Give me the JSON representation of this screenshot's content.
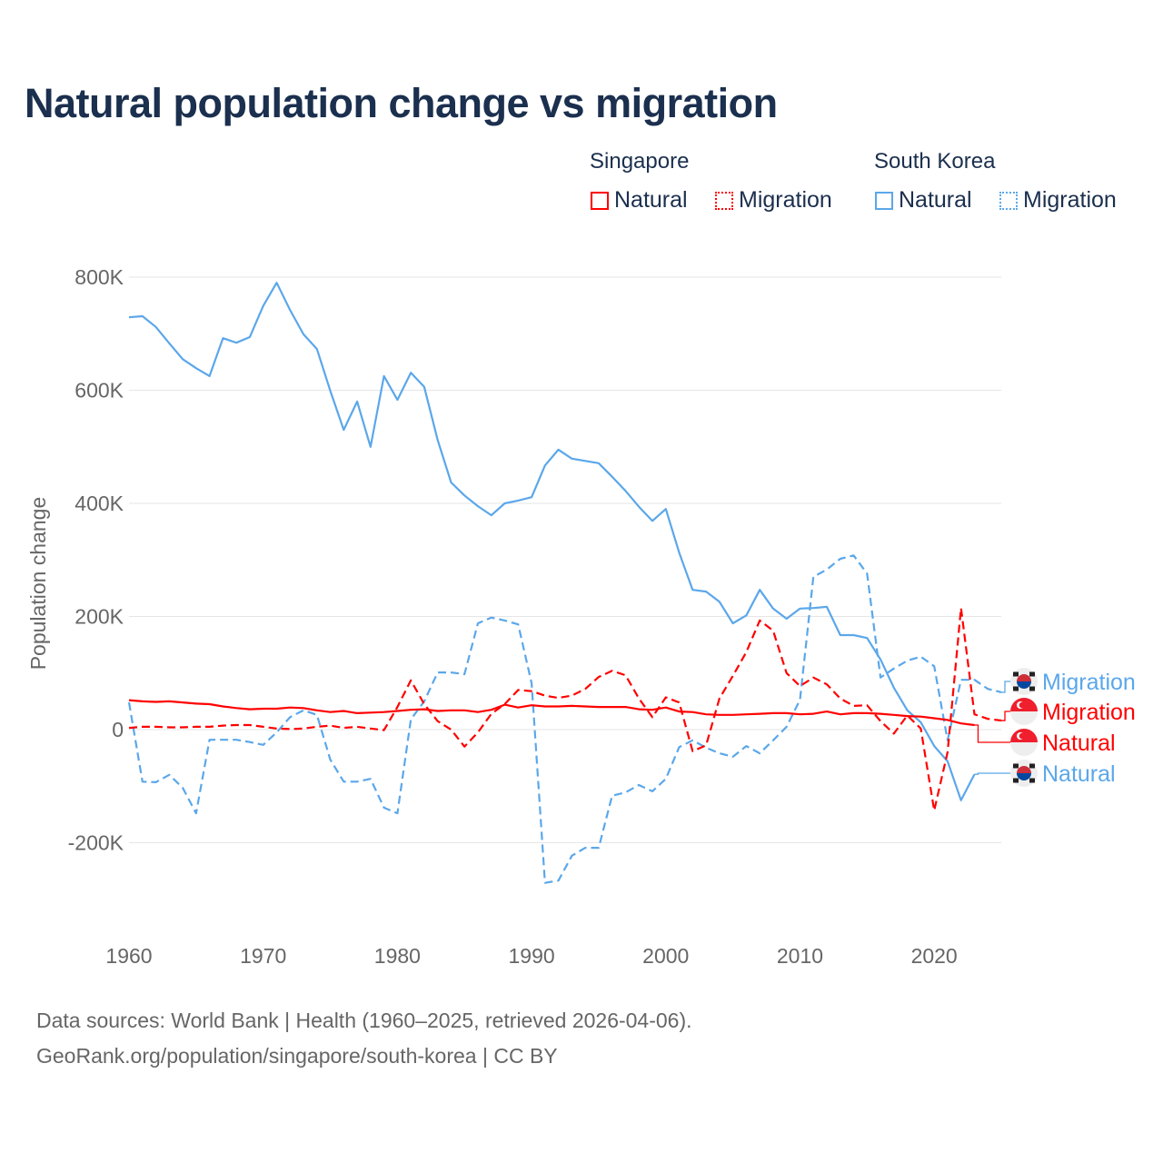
{
  "title": "Natural population change vs migration",
  "legend": {
    "groups": [
      {
        "name": "Singapore",
        "items": [
          {
            "label": "Natural",
            "style": "solid"
          },
          {
            "label": "Migration",
            "style": "dotted"
          }
        ],
        "color": "#ff0000"
      },
      {
        "name": "South Korea",
        "items": [
          {
            "label": "Natural",
            "style": "solid"
          },
          {
            "label": "Migration",
            "style": "dotted"
          }
        ],
        "color": "#5ba7ea"
      }
    ]
  },
  "source_lines": [
    "Data sources: World Bank | Health (1960–2025, retrieved 2026-04-06).",
    "GeoRank.org/population/singapore/south-korea | CC BY"
  ],
  "chart_data": {
    "type": "line",
    "title": "Natural population change vs migration",
    "xlabel": "",
    "ylabel": "Population change",
    "xlim": [
      1960,
      2025
    ],
    "ylim": [
      -200000,
      800000
    ],
    "x_ticks": [
      1960,
      1970,
      1980,
      1990,
      2000,
      2010,
      2020
    ],
    "x_tick_labels": [
      "1960",
      "1970",
      "1980",
      "1990",
      "2000",
      "2010",
      "2020"
    ],
    "y_ticks": [
      -200000,
      0,
      200000,
      400000,
      600000,
      800000
    ],
    "y_tick_labels": [
      "-200K",
      "0",
      "200K",
      "400K",
      "600K",
      "800K"
    ],
    "grid": true,
    "legend_position": "top-right",
    "series": [
      {
        "name": "South Korea Natural",
        "end_label": "Natural",
        "country": "South Korea",
        "color": "#5ba7ea",
        "dash": "solid",
        "start_year": 1960,
        "values_k": [
          729,
          731,
          712,
          683,
          655,
          639,
          625,
          692,
          684,
          694,
          749,
          790,
          742,
          699,
          673,
          599,
          530,
          580,
          500,
          625,
          583,
          631,
          606,
          512,
          437,
          414,
          395,
          379,
          400,
          405,
          411,
          467,
          495,
          479,
          475,
          471,
          447,
          422,
          394,
          369,
          390,
          313,
          247,
          244,
          226,
          188,
          202,
          247,
          214,
          196,
          214,
          215,
          217,
          167,
          167,
          162,
          124,
          74,
          34,
          13,
          -29,
          -56,
          -125,
          -79
        ]
      },
      {
        "name": "South Korea Migration",
        "end_label": "Migration",
        "country": "South Korea",
        "color": "#5ba7ea",
        "dash": "dashed",
        "start_year": 1960,
        "values_k": [
          48,
          -92,
          -93,
          -80,
          -103,
          -148,
          -18,
          -18,
          -18,
          -22,
          -27,
          -5,
          22,
          34,
          26,
          -53,
          -92,
          -92,
          -87,
          -138,
          -148,
          18,
          50,
          101,
          101,
          98,
          188,
          198,
          193,
          186,
          82,
          -271,
          -267,
          -223,
          -209,
          -209,
          -117,
          -111,
          -98,
          -109,
          -87,
          -31,
          -19,
          -32,
          -42,
          -48,
          -29,
          -42,
          -19,
          5,
          53,
          270,
          283,
          302,
          308,
          276,
          92,
          108,
          122,
          129,
          112,
          -19,
          88,
          88,
          72,
          66
        ]
      },
      {
        "name": "Singapore Natural",
        "end_label": "Natural",
        "country": "Singapore",
        "color": "#ff0000",
        "dash": "solid",
        "start_year": 1960,
        "values_k": [
          52,
          50,
          49,
          50,
          48,
          46,
          45,
          41,
          38,
          36,
          37,
          37,
          39,
          38,
          34,
          31,
          33,
          29,
          30,
          31,
          33,
          35,
          36,
          33,
          34,
          34,
          31,
          35,
          44,
          39,
          43,
          41,
          41,
          42,
          41,
          40,
          40,
          40,
          36,
          35,
          39,
          32,
          31,
          27,
          26,
          26,
          27,
          28,
          29,
          29,
          27,
          28,
          32,
          27,
          29,
          29,
          28,
          26,
          24,
          23,
          20,
          17,
          11,
          8
        ]
      },
      {
        "name": "Singapore Migration",
        "end_label": "Migration",
        "country": "Singapore",
        "color": "#ff0000",
        "dash": "dashed",
        "start_year": 1960,
        "values_k": [
          3,
          5,
          5,
          4,
          4,
          5,
          5,
          7,
          8,
          8,
          5,
          2,
          1,
          2,
          5,
          7,
          3,
          5,
          2,
          -1,
          40,
          87,
          45,
          15,
          0,
          -30,
          -5,
          28,
          45,
          70,
          68,
          60,
          56,
          60,
          72,
          93,
          104,
          96,
          55,
          22,
          57,
          48,
          -38,
          -28,
          55,
          95,
          137,
          193,
          175,
          100,
          77,
          92,
          80,
          55,
          42,
          43,
          15,
          -7,
          25,
          2,
          -143,
          -40,
          215,
          27,
          19,
          16
        ]
      }
    ]
  }
}
